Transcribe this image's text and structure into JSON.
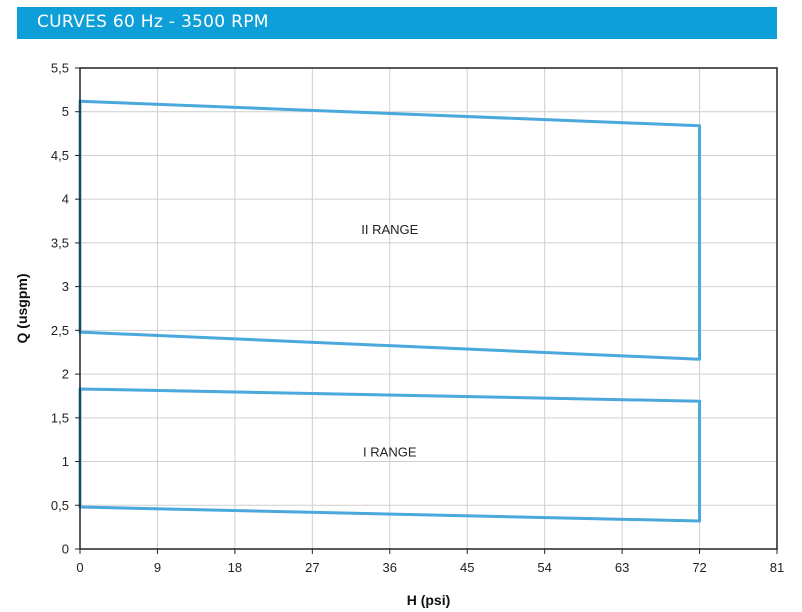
{
  "header": {
    "title": "CURVES 60 Hz - 3500 RPM"
  },
  "colors": {
    "banner": "#0e9fd8",
    "series": "#4aa8dc",
    "grid": "#cfcfcf"
  },
  "chart_data": {
    "type": "area",
    "xlabel": "H (psi)",
    "ylabel": "Q (usgpm)",
    "xlim": [
      0,
      81
    ],
    "ylim": [
      0,
      5.5
    ],
    "xticks": [
      0,
      9,
      18,
      27,
      36,
      45,
      54,
      63,
      72,
      81
    ],
    "yticks": [
      0,
      0.5,
      1,
      1.5,
      2,
      2.5,
      3,
      3.5,
      4,
      4.5,
      5,
      5.5
    ],
    "ytick_labels": [
      "0",
      "0,5",
      "1",
      "1,5",
      "2",
      "2,5",
      "3",
      "3,5",
      "4",
      "4,5",
      "5",
      "5,5"
    ],
    "grid": true,
    "series": [
      {
        "name": "I RANGE",
        "polygon": [
          [
            0,
            0.48
          ],
          [
            0,
            1.83
          ],
          [
            72,
            1.69
          ],
          [
            72,
            0.32
          ]
        ],
        "label_at": [
          36,
          1.06
        ]
      },
      {
        "name": "II RANGE",
        "polygon": [
          [
            0,
            2.48
          ],
          [
            0,
            5.12
          ],
          [
            72,
            4.84
          ],
          [
            72,
            2.17
          ]
        ],
        "label_at": [
          36,
          3.6
        ]
      }
    ]
  }
}
